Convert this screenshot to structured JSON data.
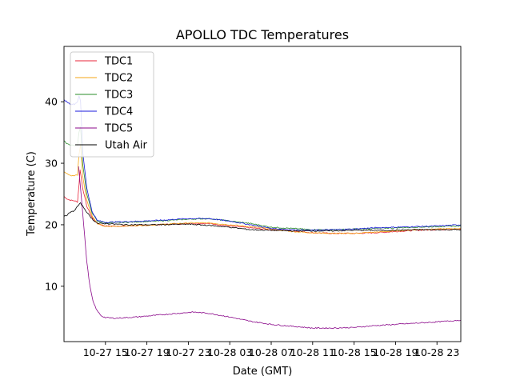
{
  "chart_data": {
    "type": "line",
    "title": "APOLLO TDC Temperatures",
    "xlabel": "Date (GMT)",
    "ylabel": "Temperature (C)",
    "x_unit": "hours",
    "x_origin": "10-27 11",
    "xlim": [
      0,
      38.3
    ],
    "ylim": [
      1,
      49
    ],
    "y_ticks": [
      10,
      20,
      30,
      40
    ],
    "x_ticks": [
      {
        "x": 4,
        "label": "10-27 15"
      },
      {
        "x": 8,
        "label": "10-27 19"
      },
      {
        "x": 12,
        "label": "10-27 23"
      },
      {
        "x": 16,
        "label": "10-28 03"
      },
      {
        "x": 20,
        "label": "10-28 07"
      },
      {
        "x": 24,
        "label": "10-28 11"
      },
      {
        "x": 28,
        "label": "10-28 15"
      },
      {
        "x": 32,
        "label": "10-28 19"
      },
      {
        "x": 36,
        "label": "10-28 23"
      }
    ],
    "legend_position": "top-left",
    "series": [
      {
        "name": "TDC1",
        "color": "#e8253a",
        "points": [
          [
            0,
            24.6
          ],
          [
            0.3,
            24.2
          ],
          [
            0.6,
            24.0
          ],
          [
            1.0,
            23.9
          ],
          [
            1.3,
            23.7
          ],
          [
            1.45,
            26.5
          ],
          [
            1.55,
            29.0
          ],
          [
            1.8,
            26.0
          ],
          [
            2.2,
            23.0
          ],
          [
            2.7,
            21.2
          ],
          [
            3.2,
            20.2
          ],
          [
            4,
            19.8
          ],
          [
            6,
            19.8
          ],
          [
            9,
            20.0
          ],
          [
            12,
            20.2
          ],
          [
            14,
            20.2
          ],
          [
            16,
            19.8
          ],
          [
            18,
            19.5
          ],
          [
            20,
            19.2
          ],
          [
            22,
            19.0
          ],
          [
            24,
            18.7
          ],
          [
            26,
            18.6
          ],
          [
            28,
            18.6
          ],
          [
            30,
            18.7
          ],
          [
            32,
            18.9
          ],
          [
            34,
            19.1
          ],
          [
            36,
            19.2
          ],
          [
            38.3,
            19.3
          ]
        ]
      },
      {
        "name": "TDC2",
        "color": "#f5a614",
        "points": [
          [
            0,
            28.6
          ],
          [
            0.3,
            28.3
          ],
          [
            0.6,
            28.0
          ],
          [
            1.0,
            28.0
          ],
          [
            1.3,
            28.1
          ],
          [
            1.45,
            31.5
          ],
          [
            1.6,
            33.0
          ],
          [
            1.8,
            28.0
          ],
          [
            2.2,
            24.0
          ],
          [
            2.7,
            21.5
          ],
          [
            3.2,
            20.2
          ],
          [
            4,
            19.7
          ],
          [
            6,
            19.8
          ],
          [
            9,
            20.0
          ],
          [
            12,
            20.3
          ],
          [
            14,
            20.3
          ],
          [
            16,
            20.0
          ],
          [
            18,
            19.7
          ],
          [
            20,
            19.3
          ],
          [
            22,
            18.9
          ],
          [
            24,
            18.7
          ],
          [
            26,
            18.6
          ],
          [
            28,
            18.6
          ],
          [
            30,
            18.8
          ],
          [
            32,
            19.0
          ],
          [
            34,
            19.2
          ],
          [
            36,
            19.3
          ],
          [
            38.3,
            19.4
          ]
        ]
      },
      {
        "name": "TDC3",
        "color": "#2a8c2a",
        "points": [
          [
            0,
            33.6
          ],
          [
            0.3,
            33.2
          ],
          [
            0.6,
            33.0
          ],
          [
            1.0,
            32.9
          ],
          [
            1.3,
            33.0
          ],
          [
            1.45,
            35.0
          ],
          [
            1.6,
            36.0
          ],
          [
            1.8,
            30.0
          ],
          [
            2.2,
            25.0
          ],
          [
            2.7,
            22.0
          ],
          [
            3.2,
            20.6
          ],
          [
            4,
            20.3
          ],
          [
            6,
            20.4
          ],
          [
            9,
            20.6
          ],
          [
            12,
            20.9
          ],
          [
            14,
            21.0
          ],
          [
            16,
            20.6
          ],
          [
            18,
            20.2
          ],
          [
            20,
            19.6
          ],
          [
            22,
            19.4
          ],
          [
            24,
            19.2
          ],
          [
            26,
            19.2
          ],
          [
            28,
            19.3
          ],
          [
            30,
            19.4
          ],
          [
            32,
            19.5
          ],
          [
            34,
            19.6
          ],
          [
            36,
            19.7
          ],
          [
            38.3,
            19.8
          ]
        ]
      },
      {
        "name": "TDC4",
        "color": "#1a1adc",
        "points": [
          [
            0,
            40.3
          ],
          [
            0.3,
            40.0
          ],
          [
            0.6,
            39.6
          ],
          [
            1.0,
            39.6
          ],
          [
            1.3,
            40.0
          ],
          [
            1.45,
            41.0
          ],
          [
            1.6,
            40.0
          ],
          [
            1.8,
            32.0
          ],
          [
            2.2,
            26.0
          ],
          [
            2.7,
            22.2
          ],
          [
            3.2,
            20.7
          ],
          [
            4,
            20.4
          ],
          [
            6,
            20.5
          ],
          [
            9,
            20.7
          ],
          [
            12,
            21.0
          ],
          [
            14,
            21.0
          ],
          [
            16,
            20.6
          ],
          [
            18,
            20.0
          ],
          [
            20,
            19.4
          ],
          [
            22,
            19.2
          ],
          [
            24,
            19.1
          ],
          [
            26,
            19.2
          ],
          [
            28,
            19.3
          ],
          [
            30,
            19.5
          ],
          [
            32,
            19.6
          ],
          [
            34,
            19.7
          ],
          [
            36,
            19.8
          ],
          [
            38.3,
            20.0
          ]
        ]
      },
      {
        "name": "TDC5",
        "color": "#8b0a8b",
        "points": [
          [
            1.4,
            29.5
          ],
          [
            1.6,
            26.0
          ],
          [
            1.9,
            20.0
          ],
          [
            2.2,
            14.0
          ],
          [
            2.5,
            10.0
          ],
          [
            2.8,
            7.5
          ],
          [
            3.2,
            6.0
          ],
          [
            3.6,
            5.2
          ],
          [
            4,
            4.9
          ],
          [
            5,
            4.8
          ],
          [
            7,
            5.0
          ],
          [
            9,
            5.3
          ],
          [
            11,
            5.6
          ],
          [
            12.5,
            5.8
          ],
          [
            14,
            5.6
          ],
          [
            16,
            5.0
          ],
          [
            18,
            4.3
          ],
          [
            20,
            3.8
          ],
          [
            22,
            3.5
          ],
          [
            24,
            3.2
          ],
          [
            26,
            3.2
          ],
          [
            28,
            3.3
          ],
          [
            30,
            3.6
          ],
          [
            32,
            3.8
          ],
          [
            34,
            4.0
          ],
          [
            36,
            4.2
          ],
          [
            38.3,
            4.5
          ]
        ]
      },
      {
        "name": "Utah Air",
        "color": "#000000",
        "points": [
          [
            0,
            21.3
          ],
          [
            0.3,
            21.6
          ],
          [
            0.6,
            22.0
          ],
          [
            1.0,
            22.3
          ],
          [
            1.3,
            23.0
          ],
          [
            1.6,
            23.5
          ],
          [
            1.9,
            22.8
          ],
          [
            2.3,
            21.8
          ],
          [
            2.8,
            20.8
          ],
          [
            3.3,
            20.2
          ],
          [
            4,
            20.2
          ],
          [
            6,
            20.0
          ],
          [
            9,
            20.0
          ],
          [
            12,
            20.1
          ],
          [
            14,
            19.9
          ],
          [
            16,
            19.6
          ],
          [
            18,
            19.2
          ],
          [
            20,
            19.1
          ],
          [
            22,
            19.0
          ],
          [
            24,
            19.0
          ],
          [
            26,
            19.0
          ],
          [
            28,
            19.1
          ],
          [
            30,
            19.1
          ],
          [
            32,
            19.1
          ],
          [
            34,
            19.2
          ],
          [
            36,
            19.2
          ],
          [
            38.3,
            19.2
          ]
        ]
      }
    ]
  }
}
